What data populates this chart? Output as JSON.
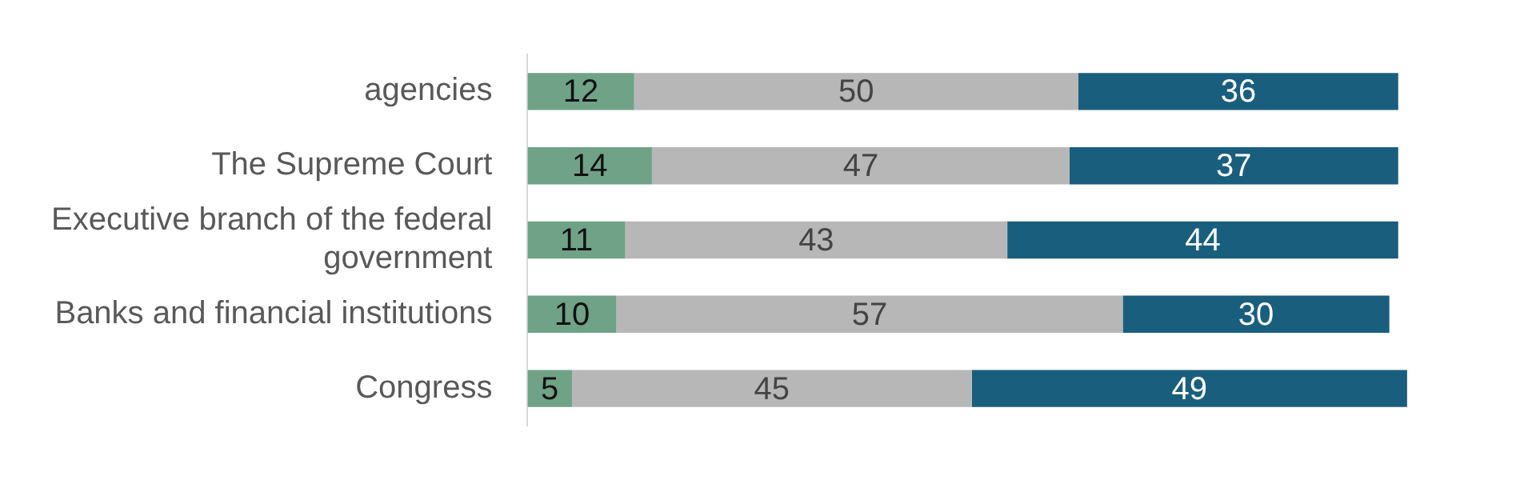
{
  "chart_data": {
    "type": "bar",
    "orientation": "horizontal",
    "stacked": true,
    "categories": [
      "agencies",
      "The Supreme Court",
      "Executive branch of the federal government",
      "Banks and financial institutions",
      "Congress"
    ],
    "series": [
      {
        "color": "#6fa287",
        "values": [
          12,
          14,
          11,
          10,
          5
        ]
      },
      {
        "color": "#b7b7b7",
        "values": [
          50,
          47,
          43,
          57,
          45
        ]
      },
      {
        "color": "#1a5e7d",
        "values": [
          36,
          37,
          44,
          30,
          49
        ]
      }
    ],
    "tick_labels": "y",
    "data_labels": true,
    "legend": false
  }
}
